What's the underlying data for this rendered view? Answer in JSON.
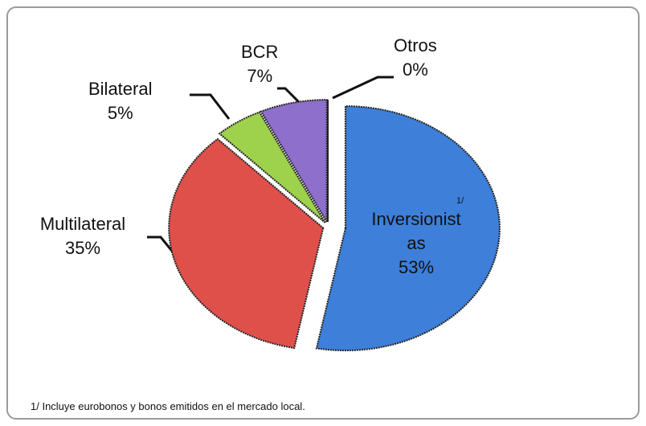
{
  "chart_data": {
    "type": "pie",
    "categories": [
      "Inversionistas",
      "Multilateral",
      "Bilateral",
      "BCR",
      "Otros"
    ],
    "values": [
      53,
      35,
      5,
      7,
      0
    ],
    "value_labels": [
      "53%",
      "35%",
      "5%",
      "7%",
      "0%"
    ],
    "colors": [
      "#3d7fd9",
      "#e0504b",
      "#9fd24c",
      "#8e6fcc",
      "#4bb0c8"
    ],
    "note_marker": "1/",
    "footnote": "1/ Incluye eurobonos  y bonos  emitidos en el mercado local."
  }
}
